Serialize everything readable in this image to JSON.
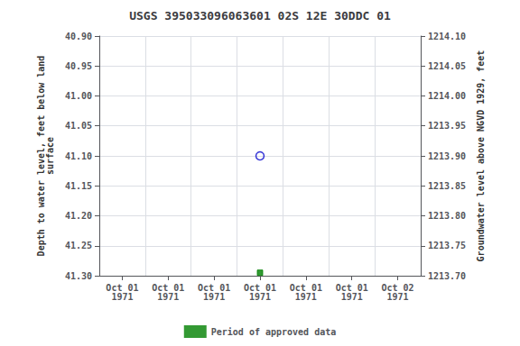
{
  "chart_data": {
    "type": "scatter",
    "title": "USGS 395033096063601 02S 12E 30DDC 01",
    "categories": [
      "Oct 01\n1971",
      "Oct 01\n1971",
      "Oct 01\n1971",
      "Oct 01\n1971",
      "Oct 01\n1971",
      "Oct 01\n1971",
      "Oct 02\n1971"
    ],
    "series": [
      {
        "color": "#0000cc",
        "marker": "circle_open",
        "values": [
          null,
          null,
          null,
          41.1,
          null,
          null,
          null
        ]
      },
      {
        "name": "Period of approved data",
        "color": "#008000",
        "marker": "square",
        "values": [
          null,
          null,
          null,
          41.295,
          null,
          null,
          null
        ]
      }
    ],
    "ylabel": "Depth to water level, feet below land\nsurface",
    "y2label": "Groundwater level above NGVD 1929, feet",
    "ylim": [
      41.3,
      40.9
    ],
    "yticks": [
      {
        "value": 40.9,
        "label": "40.90"
      },
      {
        "value": 40.95,
        "label": "40.95"
      },
      {
        "value": 41.0,
        "label": "41.00"
      },
      {
        "value": 41.05,
        "label": "41.05"
      },
      {
        "value": 41.1,
        "label": "41.10"
      },
      {
        "value": 41.15,
        "label": "41.15"
      },
      {
        "value": 41.2,
        "label": "41.20"
      },
      {
        "value": 41.25,
        "label": "41.25"
      },
      {
        "value": 41.3,
        "label": "41.30"
      }
    ],
    "y2lim": [
      1213.7,
      1214.1
    ],
    "y2ticks": [
      {
        "value": 1214.1,
        "label": "1214.10"
      },
      {
        "value": 1214.05,
        "label": "1214.05"
      },
      {
        "value": 1214.0,
        "label": "1214.00"
      },
      {
        "value": 1213.95,
        "label": "1213.95"
      },
      {
        "value": 1213.9,
        "label": "1213.90"
      },
      {
        "value": 1213.85,
        "label": "1213.85"
      },
      {
        "value": 1213.8,
        "label": "1213.80"
      },
      {
        "value": 1213.75,
        "label": "1213.75"
      },
      {
        "value": 1213.7,
        "label": "1213.70"
      }
    ],
    "grid": true,
    "legend": "bottom"
  }
}
